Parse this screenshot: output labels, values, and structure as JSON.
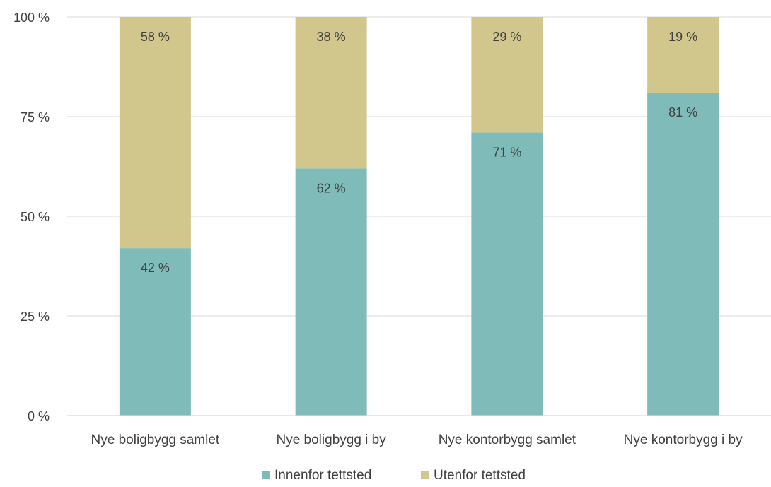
{
  "chart_data": {
    "type": "bar",
    "stacked": true,
    "categories": [
      "Nye boligbygg samlet",
      "Nye boligbygg i by",
      "Nye kontorbygg samlet",
      "Nye kontorbygg i by"
    ],
    "series": [
      {
        "name": "Innenfor tettsted",
        "values": [
          42,
          62,
          71,
          81
        ],
        "labels": [
          "42 %",
          "62 %",
          "71 %",
          "81 %"
        ],
        "color": "#7fbcb9"
      },
      {
        "name": "Utenfor tettsted",
        "values": [
          58,
          38,
          29,
          19
        ],
        "labels": [
          "58 %",
          "38 %",
          "29 %",
          "19 %"
        ],
        "color": "#d1c78c"
      }
    ],
    "ylim": [
      0,
      100
    ],
    "yticks": [
      0,
      25,
      50,
      75,
      100
    ],
    "ytick_labels": [
      "0 %",
      "25 %",
      "50 %",
      "75 %",
      "100 %"
    ],
    "grid": true,
    "legend_position": "bottom",
    "colors": {
      "grid": "#d9d9d9",
      "text": "#404040"
    }
  }
}
